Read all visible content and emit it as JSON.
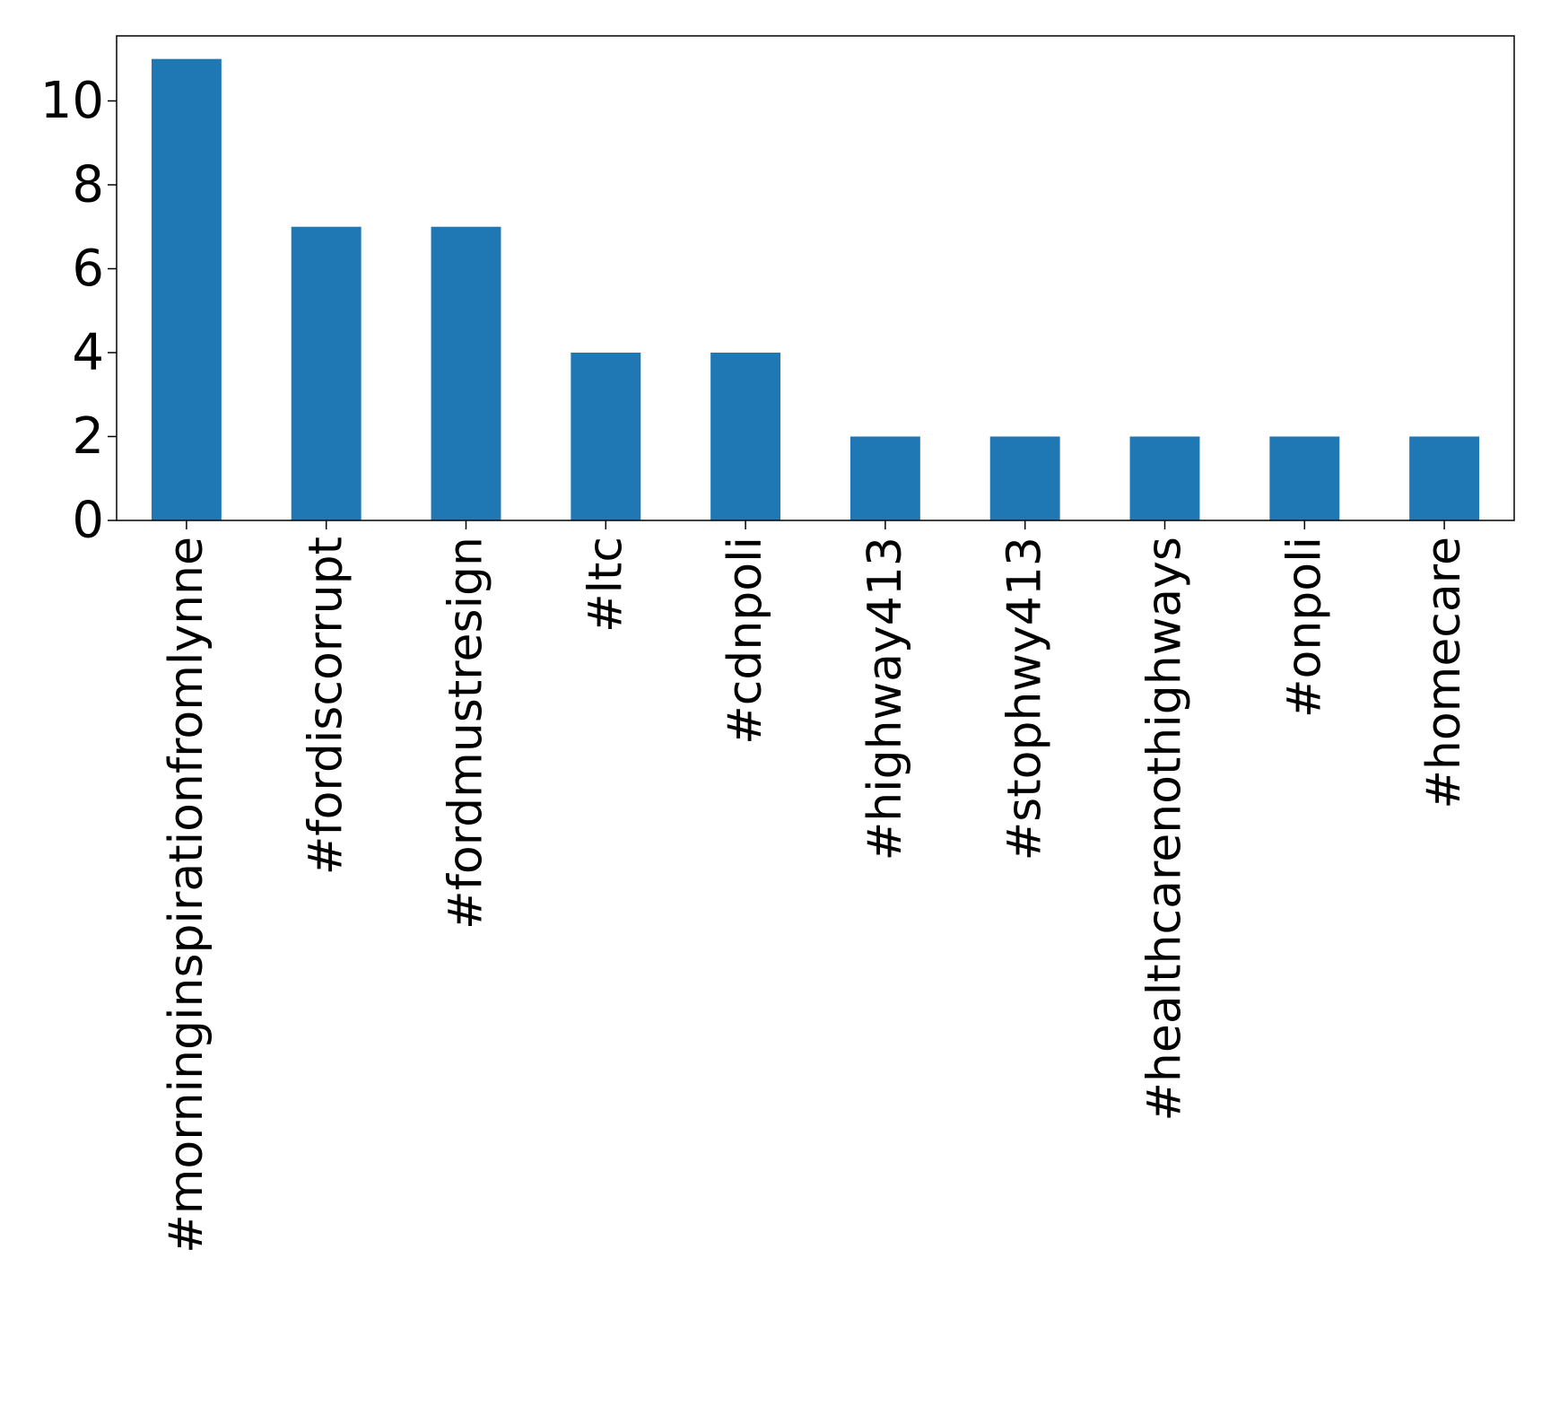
{
  "chart_data": {
    "type": "bar",
    "title": "",
    "xlabel": "",
    "ylabel": "",
    "categories": [
      "#morninginspirationfromlynne",
      "#fordiscorrupt",
      "#fordmustresign",
      "#ltc",
      "#cdnpoli",
      "#highway413",
      "#stophwy413",
      "#healthcarenothighways",
      "#onpoli",
      "#homecare"
    ],
    "values": [
      11,
      7,
      7,
      4,
      4,
      2,
      2,
      2,
      2,
      2
    ],
    "ylim": [
      0,
      11.55
    ],
    "yticks": [
      "0",
      "2",
      "4",
      "6",
      "8",
      "10"
    ],
    "grid": false,
    "legend": "none",
    "colors": {
      "bar": "#1f77b4",
      "axis": "#000000",
      "background": "#ffffff"
    }
  }
}
